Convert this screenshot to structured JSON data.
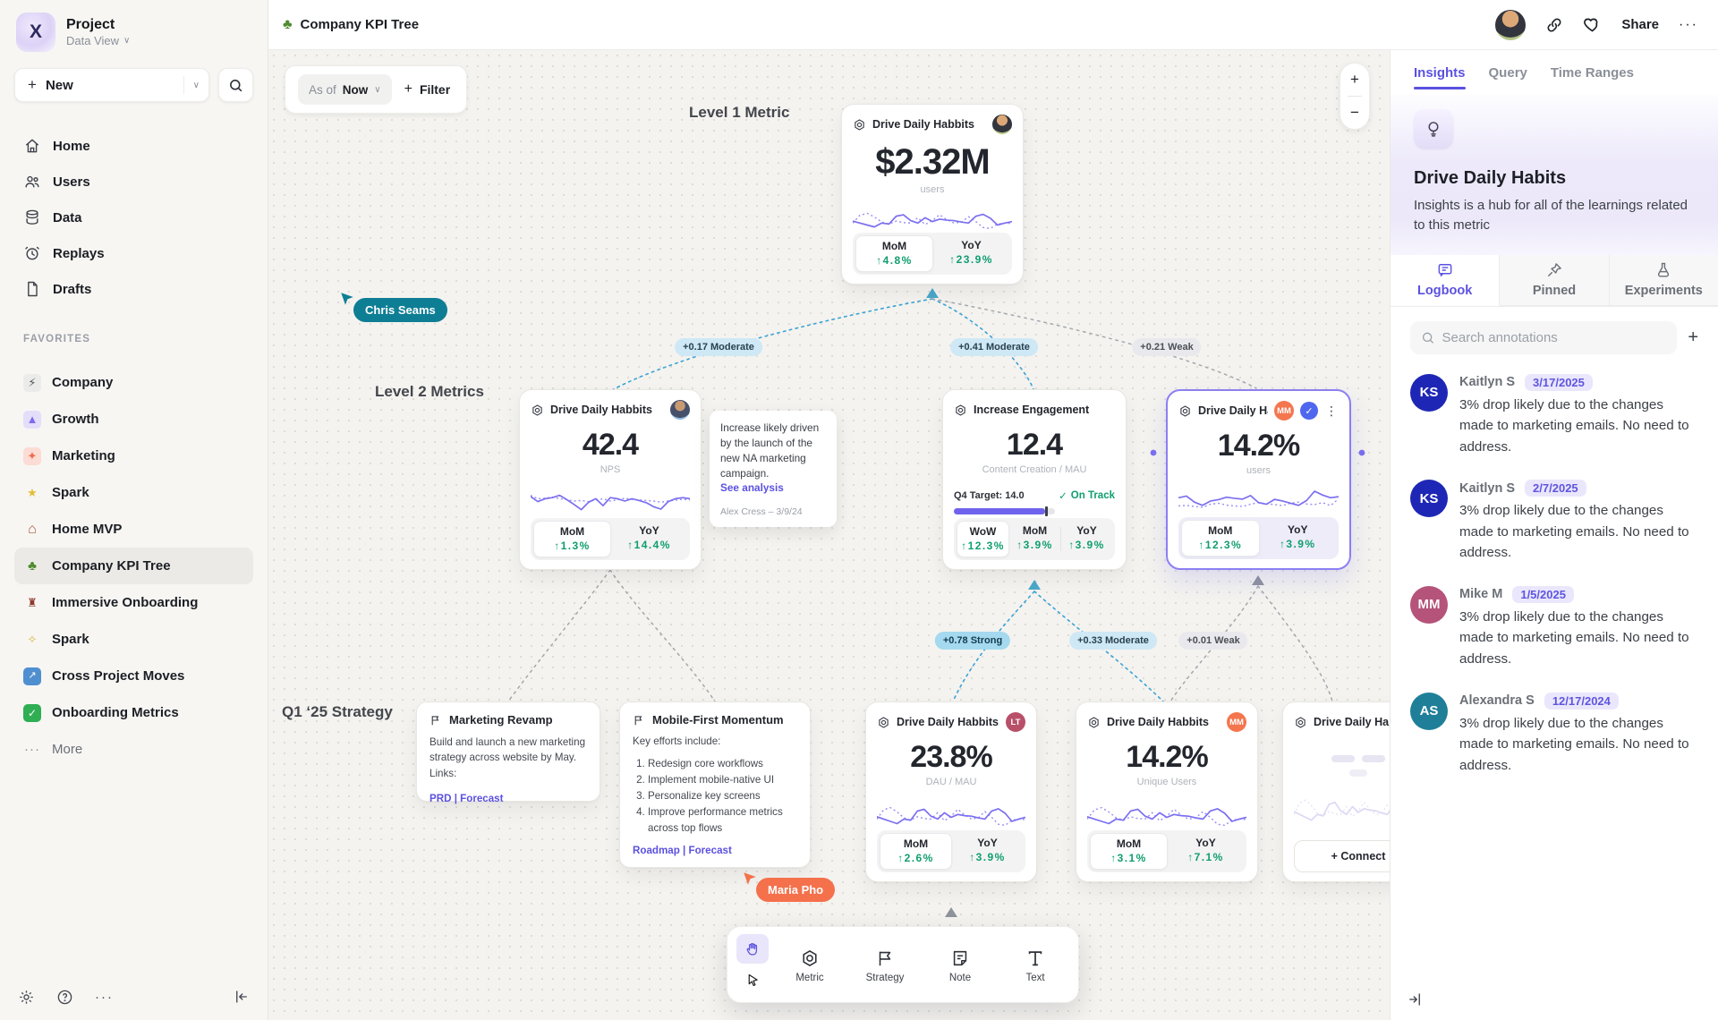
{
  "glyphs": {
    "plus": "+",
    "minus": "−",
    "chevron_down": "∨",
    "kebab": "⋮",
    "ellipsis": "···",
    "check": "✓",
    "tree": "♣",
    "question": "?"
  },
  "sidebar": {
    "project": "Project",
    "workspace": "Data View",
    "new_label": "New",
    "nav": [
      {
        "label": "Home"
      },
      {
        "label": "Users"
      },
      {
        "label": "Data"
      },
      {
        "label": "Replays"
      },
      {
        "label": "Drafts"
      }
    ],
    "favorites_label": "FAVORITES",
    "favorites": [
      {
        "label": "Company",
        "glyph": "⚡",
        "bg": "#ebebe9",
        "fg": "#52555c"
      },
      {
        "label": "Growth",
        "glyph": "▲",
        "bg": "#e4defa",
        "fg": "#7d6cf0"
      },
      {
        "label": "Marketing",
        "glyph": "✦",
        "bg": "#fcdcd4",
        "fg": "#ef6d4e"
      },
      {
        "label": "Spark",
        "glyph": "★",
        "bg": "transparent",
        "fg": "#e4bd35"
      },
      {
        "label": "Home MVP",
        "glyph": "⌂",
        "bg": "transparent",
        "fg": "#b0543e"
      },
      {
        "label": "Company KPI Tree",
        "glyph": "♣",
        "bg": "transparent",
        "fg": "#4e8a2e"
      },
      {
        "label": "Immersive Onboarding",
        "glyph": "♜",
        "bg": "transparent",
        "fg": "#8d3a2b"
      },
      {
        "label": "Spark",
        "glyph": "✧",
        "bg": "transparent",
        "fg": "#d9b83a"
      },
      {
        "label": "Cross Project Moves",
        "glyph": "↗",
        "bg": "#4f8fd0",
        "fg": "#ffffff"
      },
      {
        "label": "Onboarding Metrics",
        "glyph": "✓",
        "bg": "#2fae53",
        "fg": "#ffffff"
      }
    ],
    "more_label": "More"
  },
  "header": {
    "title": "Company KPI Tree",
    "share_label": "Share"
  },
  "canvas": {
    "asof_label": "As of",
    "asof_value": "Now",
    "filter_label": "Filter",
    "levels": {
      "l1": "Level 1 Metric",
      "l2": "Level 2 Metrics",
      "strategy": "Q1 ‘25 Strategy"
    },
    "cursors": [
      {
        "name": "Chris Seams",
        "color": "#0e7e95"
      },
      {
        "name": "Maria Pho",
        "color": "#f4714c"
      }
    ],
    "correlations": [
      {
        "label": "+0.17 Moderate"
      },
      {
        "label": "+0.41 Moderate"
      },
      {
        "label": "+0.21 Weak"
      },
      {
        "label": "+0.78 Strong"
      },
      {
        "label": "+0.33 Moderate"
      },
      {
        "label": "+0.01 Weak"
      }
    ],
    "toolbar": [
      {
        "label": "Metric"
      },
      {
        "label": "Strategy"
      },
      {
        "label": "Note"
      },
      {
        "label": "Text"
      }
    ]
  },
  "cards": {
    "l1": {
      "name": "Drive Daily Habbits",
      "value": "$2.32M",
      "unit": "users",
      "mom_label": "MoM",
      "mom": "↑4.8%",
      "yoy_label": "YoY",
      "yoy": "↑23.9%"
    },
    "nps": {
      "name": "Drive Daily Habbits",
      "value": "42.4",
      "unit": "NPS",
      "mom_label": "MoM",
      "mom": "↑1.3%",
      "yoy_label": "YoY",
      "yoy": "↑14.4%"
    },
    "engagement": {
      "name": "Increase Engagement",
      "value": "12.4",
      "unit": "Content Creation / MAU",
      "target_label": "Q4 Target: 14.0",
      "status": "On Track",
      "wow_label": "WoW",
      "wow": "↑12.3%",
      "mom_label": "MoM",
      "mom": "↑3.9%",
      "yoy_label": "YoY",
      "yoy": "↑3.9%"
    },
    "selected": {
      "name": "Drive Daily Habb..",
      "badge": "MM",
      "badge_color": "#f4764e",
      "value": "14.2%",
      "unit": "users",
      "mom_label": "MoM",
      "mom": "↑12.3%",
      "yoy_label": "YoY",
      "yoy": "↑3.9%"
    },
    "dau": {
      "name": "Drive Daily Habbits",
      "badge": "LT",
      "badge_color": "#b8506a",
      "value": "23.8%",
      "unit": "DAU / MAU",
      "mom_label": "MoM",
      "mom": "↑2.6%",
      "yoy_label": "YoY",
      "yoy": "↑3.9%"
    },
    "unique": {
      "name": "Drive Daily Habbits",
      "badge": "MM",
      "badge_color": "#f4764e",
      "value": "14.2%",
      "unit": "Unique Users",
      "mom_label": "MoM",
      "mom": "↑3.1%",
      "yoy_label": "YoY",
      "yoy": "↑7.1%"
    },
    "partial": {
      "name": "Drive Daily Hab",
      "connect_label": "+ Connect"
    }
  },
  "note": {
    "text": "Increase likely driven by the launch of the new NA marketing campaign.",
    "link": "See analysis",
    "author": "Alex Cress – 3/9/24"
  },
  "strategies": [
    {
      "title": "Marketing Revamp",
      "body": "Build and launch a new marketing strategy across website by May. Links:",
      "links": "PRD | Forecast"
    },
    {
      "title": "Mobile-First Momentum",
      "intro": "Key efforts include:",
      "items": [
        "Redesign core workflows",
        "Implement mobile-native UI",
        "Personalize key screens",
        "Improve performance metrics across top flows"
      ],
      "links": "Roadmap | Forecast"
    }
  ],
  "insights": {
    "tabs": [
      "Insights",
      "Query",
      "Time Ranges"
    ],
    "title": "Drive Daily Habits",
    "description": "Insights is a hub for all of the learnings related to this metric",
    "subtabs": [
      "Logbook",
      "Pinned",
      "Experiments"
    ],
    "search_placeholder": "Search annotations",
    "annotations": [
      {
        "initials": "KS",
        "name": "Kaitlyn S",
        "date": "3/17/2025",
        "color": "#1e27b5",
        "text": "3% drop likely due to the changes made to marketing emails. No need to address."
      },
      {
        "initials": "KS",
        "name": "Kaitlyn S",
        "date": "2/7/2025",
        "color": "#1e27b5",
        "text": "3% drop likely due to the changes made to marketing emails. No need to address."
      },
      {
        "initials": "MM",
        "name": "Mike M",
        "date": "1/5/2025",
        "color": "#b5537a",
        "text": "3% drop likely due to the changes made to marketing emails. No need to address."
      },
      {
        "initials": "AS",
        "name": "Alexandra S",
        "date": "12/17/2024",
        "color": "#1f7f99",
        "text": "3% drop likely due to the changes made to marketing emails. No need to address."
      }
    ]
  },
  "sparks": {
    "a_solid": [
      38,
      30,
      22,
      14,
      30,
      26,
      58,
      64,
      40,
      30,
      52,
      36,
      46,
      42,
      40,
      34,
      30,
      58,
      66,
      50,
      22,
      30,
      36
    ],
    "a_dotted": [
      30,
      62,
      70,
      55,
      34,
      26,
      38,
      32,
      30,
      52,
      24,
      40,
      64,
      44,
      30,
      34,
      56,
      36,
      12,
      8,
      26,
      30,
      28
    ],
    "b_solid": [
      66,
      48,
      58,
      62,
      70,
      55,
      38,
      20,
      46,
      58,
      34,
      62,
      58,
      50,
      58,
      52,
      44,
      30,
      22,
      48,
      58,
      62,
      58
    ],
    "b_dotted": [
      70,
      58,
      60,
      64,
      58,
      55,
      50,
      52,
      48,
      54,
      58,
      50,
      54,
      60,
      56,
      54,
      52,
      50,
      46,
      50,
      53,
      56,
      54
    ],
    "c_solid": [
      62,
      68,
      46,
      34,
      50,
      55,
      64,
      60,
      57,
      70,
      44,
      38,
      56,
      50,
      42,
      34,
      52,
      86,
      72,
      62,
      66
    ],
    "c_dotted": [
      32,
      34,
      30,
      27,
      38,
      42,
      35,
      32,
      30,
      38,
      44,
      40,
      37,
      33,
      42,
      46,
      39,
      37,
      44,
      33,
      58
    ]
  }
}
